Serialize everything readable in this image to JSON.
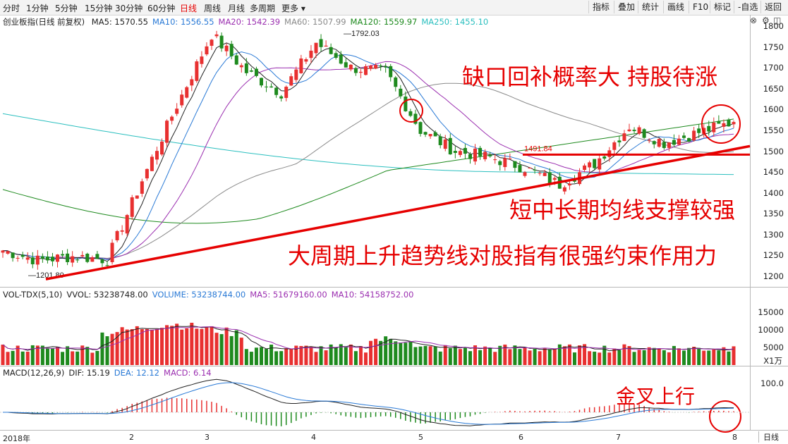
{
  "toolbar": {
    "periods": [
      "分时",
      "1分钟",
      "5分钟",
      "15分钟",
      "30分钟",
      "60分钟",
      "日线",
      "周线",
      "月线",
      "多周期",
      "更多"
    ],
    "active": "日线",
    "right_buttons": [
      "指标",
      "叠加",
      "统计",
      "画线",
      "F10",
      "标记",
      "-自选",
      "返回"
    ]
  },
  "price_panel": {
    "title": "创业板指(日线 前复权)",
    "ma_labels": [
      {
        "text": "MA5: 1570.55",
        "color": "#222222"
      },
      {
        "text": "MA10: 1556.55",
        "color": "#2a7ad6"
      },
      {
        "text": "MA20: 1542.39",
        "color": "#9b2fb0"
      },
      {
        "text": "MA60: 1507.99",
        "color": "#8a8a8a"
      },
      {
        "text": "MA120: 1559.97",
        "color": "#1e8a1e"
      },
      {
        "text": "MA250: 1455.10",
        "color": "#2bbfbf"
      }
    ],
    "high_label": "1792.03",
    "low_label": "1201.80",
    "gap_label": "1491.84",
    "y_ticks": [
      "1800",
      "1750",
      "1700",
      "1650",
      "1600",
      "1550",
      "1500",
      "1450",
      "1400",
      "1350",
      "1300",
      "1250",
      "1200"
    ]
  },
  "volume_panel": {
    "header": [
      {
        "text": "VOL-TDX(5,10)",
        "color": "#222222"
      },
      {
        "text": "VVOL: 53238748.00",
        "color": "#222222"
      },
      {
        "text": "VOLUME: 53238744.00",
        "color": "#2a7ad6"
      },
      {
        "text": "MA5: 51679160.00",
        "color": "#9b2fb0"
      },
      {
        "text": "MA10: 54158752.00",
        "color": "#9b2fb0"
      }
    ],
    "y_ticks": [
      "15000",
      "10000",
      "5000"
    ],
    "unit": "X1万"
  },
  "macd_panel": {
    "header": [
      {
        "text": "MACD(12,26,9)",
        "color": "#222222"
      },
      {
        "text": "DIF: 15.19",
        "color": "#222222"
      },
      {
        "text": "DEA: 12.12",
        "color": "#2a7ad6"
      },
      {
        "text": "MACD: 6.14",
        "color": "#9b2fb0"
      }
    ],
    "y_tick": "100.0"
  },
  "x_axis": {
    "labels": [
      "2018年",
      "2",
      "3",
      "4",
      "5",
      "6",
      "7",
      "8"
    ],
    "period_button": "日线"
  },
  "annotations": {
    "gap": "缺口回补概率大  持股待涨",
    "support": "短中长期均线支撑较强",
    "trendline": "大周期上升趋势线对股指有很强约束作用力",
    "golden_cross": "金叉上行"
  },
  "colors": {
    "up": "#e83030",
    "down": "#1e8a1e",
    "annotation": "#e60000"
  },
  "chart_data": {
    "type": "candlestick",
    "title": "创业板指(日线 前复权)",
    "period": "daily",
    "high": 1792.03,
    "low": 1201.8,
    "gap_level": 1491.84,
    "close_points": [
      {
        "month": "2018-01-02",
        "close": 1262
      },
      {
        "month": "2018-01-12",
        "close": 1238
      },
      {
        "month": "2018-01-26",
        "close": 1248
      },
      {
        "month": "2018-02-07",
        "close": 1240
      },
      {
        "month": "2018-02-23",
        "close": 1430
      },
      {
        "month": "2018-03-01",
        "close": 1610
      },
      {
        "month": "2018-03-12",
        "close": 1780
      },
      {
        "month": "2018-03-20",
        "close": 1690
      },
      {
        "month": "2018-04-02",
        "close": 1640
      },
      {
        "month": "2018-04-10",
        "close": 1760
      },
      {
        "month": "2018-04-18",
        "close": 1700
      },
      {
        "month": "2018-04-25",
        "close": 1690
      },
      {
        "month": "2018-05-02",
        "close": 1550
      },
      {
        "month": "2018-05-10",
        "close": 1500
      },
      {
        "month": "2018-05-20",
        "close": 1485
      },
      {
        "month": "2018-06-01",
        "close": 1460
      },
      {
        "month": "2018-06-12",
        "close": 1420
      },
      {
        "month": "2018-06-22",
        "close": 1470
      },
      {
        "month": "2018-07-03",
        "close": 1560
      },
      {
        "month": "2018-07-12",
        "close": 1520
      },
      {
        "month": "2018-07-22",
        "close": 1545
      },
      {
        "month": "2018-08-01",
        "close": 1570
      }
    ],
    "last_values": {
      "MA5": 1570.55,
      "MA10": 1556.55,
      "MA20": 1542.39,
      "MA60": 1507.99,
      "MA120": 1559.97,
      "MA250": 1455.1,
      "VOLUME": 53238744,
      "VOL_MA5": 51679160,
      "VOL_MA10": 54158752,
      "DIF": 15.19,
      "DEA": 12.12,
      "MACD": 6.14
    },
    "ylim": [
      1180,
      1810
    ],
    "volume_ylim": [
      0,
      18000
    ],
    "macd_ylim": [
      -120,
      130
    ]
  }
}
